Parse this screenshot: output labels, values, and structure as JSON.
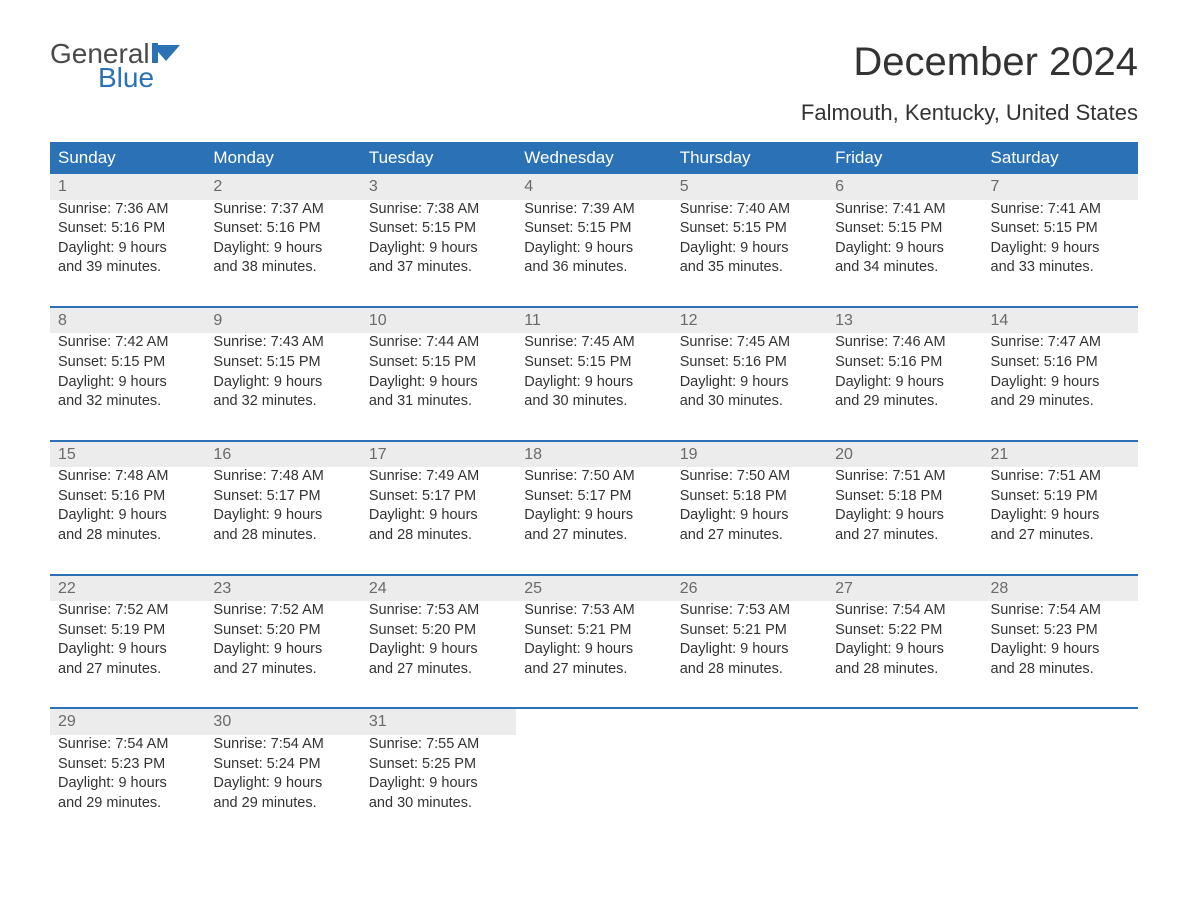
{
  "logo": {
    "text_general": "General",
    "text_blue": "Blue",
    "flag_color": "#2a72b5"
  },
  "title": "December 2024",
  "subtitle": "Falmouth, Kentucky, United States",
  "colors": {
    "header_bg": "#2a72b5",
    "header_text": "#ffffff",
    "daynum_bg": "#ececec",
    "daynum_text": "#6a6a6a",
    "body_text": "#333333",
    "separator": "#2a72b5"
  },
  "day_headers": [
    "Sunday",
    "Monday",
    "Tuesday",
    "Wednesday",
    "Thursday",
    "Friday",
    "Saturday"
  ],
  "weeks": [
    [
      {
        "n": "1",
        "sr": "Sunrise: 7:36 AM",
        "ss": "Sunset: 5:16 PM",
        "d1": "Daylight: 9 hours",
        "d2": "and 39 minutes."
      },
      {
        "n": "2",
        "sr": "Sunrise: 7:37 AM",
        "ss": "Sunset: 5:16 PM",
        "d1": "Daylight: 9 hours",
        "d2": "and 38 minutes."
      },
      {
        "n": "3",
        "sr": "Sunrise: 7:38 AM",
        "ss": "Sunset: 5:15 PM",
        "d1": "Daylight: 9 hours",
        "d2": "and 37 minutes."
      },
      {
        "n": "4",
        "sr": "Sunrise: 7:39 AM",
        "ss": "Sunset: 5:15 PM",
        "d1": "Daylight: 9 hours",
        "d2": "and 36 minutes."
      },
      {
        "n": "5",
        "sr": "Sunrise: 7:40 AM",
        "ss": "Sunset: 5:15 PM",
        "d1": "Daylight: 9 hours",
        "d2": "and 35 minutes."
      },
      {
        "n": "6",
        "sr": "Sunrise: 7:41 AM",
        "ss": "Sunset: 5:15 PM",
        "d1": "Daylight: 9 hours",
        "d2": "and 34 minutes."
      },
      {
        "n": "7",
        "sr": "Sunrise: 7:41 AM",
        "ss": "Sunset: 5:15 PM",
        "d1": "Daylight: 9 hours",
        "d2": "and 33 minutes."
      }
    ],
    [
      {
        "n": "8",
        "sr": "Sunrise: 7:42 AM",
        "ss": "Sunset: 5:15 PM",
        "d1": "Daylight: 9 hours",
        "d2": "and 32 minutes."
      },
      {
        "n": "9",
        "sr": "Sunrise: 7:43 AM",
        "ss": "Sunset: 5:15 PM",
        "d1": "Daylight: 9 hours",
        "d2": "and 32 minutes."
      },
      {
        "n": "10",
        "sr": "Sunrise: 7:44 AM",
        "ss": "Sunset: 5:15 PM",
        "d1": "Daylight: 9 hours",
        "d2": "and 31 minutes."
      },
      {
        "n": "11",
        "sr": "Sunrise: 7:45 AM",
        "ss": "Sunset: 5:15 PM",
        "d1": "Daylight: 9 hours",
        "d2": "and 30 minutes."
      },
      {
        "n": "12",
        "sr": "Sunrise: 7:45 AM",
        "ss": "Sunset: 5:16 PM",
        "d1": "Daylight: 9 hours",
        "d2": "and 30 minutes."
      },
      {
        "n": "13",
        "sr": "Sunrise: 7:46 AM",
        "ss": "Sunset: 5:16 PM",
        "d1": "Daylight: 9 hours",
        "d2": "and 29 minutes."
      },
      {
        "n": "14",
        "sr": "Sunrise: 7:47 AM",
        "ss": "Sunset: 5:16 PM",
        "d1": "Daylight: 9 hours",
        "d2": "and 29 minutes."
      }
    ],
    [
      {
        "n": "15",
        "sr": "Sunrise: 7:48 AM",
        "ss": "Sunset: 5:16 PM",
        "d1": "Daylight: 9 hours",
        "d2": "and 28 minutes."
      },
      {
        "n": "16",
        "sr": "Sunrise: 7:48 AM",
        "ss": "Sunset: 5:17 PM",
        "d1": "Daylight: 9 hours",
        "d2": "and 28 minutes."
      },
      {
        "n": "17",
        "sr": "Sunrise: 7:49 AM",
        "ss": "Sunset: 5:17 PM",
        "d1": "Daylight: 9 hours",
        "d2": "and 28 minutes."
      },
      {
        "n": "18",
        "sr": "Sunrise: 7:50 AM",
        "ss": "Sunset: 5:17 PM",
        "d1": "Daylight: 9 hours",
        "d2": "and 27 minutes."
      },
      {
        "n": "19",
        "sr": "Sunrise: 7:50 AM",
        "ss": "Sunset: 5:18 PM",
        "d1": "Daylight: 9 hours",
        "d2": "and 27 minutes."
      },
      {
        "n": "20",
        "sr": "Sunrise: 7:51 AM",
        "ss": "Sunset: 5:18 PM",
        "d1": "Daylight: 9 hours",
        "d2": "and 27 minutes."
      },
      {
        "n": "21",
        "sr": "Sunrise: 7:51 AM",
        "ss": "Sunset: 5:19 PM",
        "d1": "Daylight: 9 hours",
        "d2": "and 27 minutes."
      }
    ],
    [
      {
        "n": "22",
        "sr": "Sunrise: 7:52 AM",
        "ss": "Sunset: 5:19 PM",
        "d1": "Daylight: 9 hours",
        "d2": "and 27 minutes."
      },
      {
        "n": "23",
        "sr": "Sunrise: 7:52 AM",
        "ss": "Sunset: 5:20 PM",
        "d1": "Daylight: 9 hours",
        "d2": "and 27 minutes."
      },
      {
        "n": "24",
        "sr": "Sunrise: 7:53 AM",
        "ss": "Sunset: 5:20 PM",
        "d1": "Daylight: 9 hours",
        "d2": "and 27 minutes."
      },
      {
        "n": "25",
        "sr": "Sunrise: 7:53 AM",
        "ss": "Sunset: 5:21 PM",
        "d1": "Daylight: 9 hours",
        "d2": "and 27 minutes."
      },
      {
        "n": "26",
        "sr": "Sunrise: 7:53 AM",
        "ss": "Sunset: 5:21 PM",
        "d1": "Daylight: 9 hours",
        "d2": "and 28 minutes."
      },
      {
        "n": "27",
        "sr": "Sunrise: 7:54 AM",
        "ss": "Sunset: 5:22 PM",
        "d1": "Daylight: 9 hours",
        "d2": "and 28 minutes."
      },
      {
        "n": "28",
        "sr": "Sunrise: 7:54 AM",
        "ss": "Sunset: 5:23 PM",
        "d1": "Daylight: 9 hours",
        "d2": "and 28 minutes."
      }
    ],
    [
      {
        "n": "29",
        "sr": "Sunrise: 7:54 AM",
        "ss": "Sunset: 5:23 PM",
        "d1": "Daylight: 9 hours",
        "d2": "and 29 minutes."
      },
      {
        "n": "30",
        "sr": "Sunrise: 7:54 AM",
        "ss": "Sunset: 5:24 PM",
        "d1": "Daylight: 9 hours",
        "d2": "and 29 minutes."
      },
      {
        "n": "31",
        "sr": "Sunrise: 7:55 AM",
        "ss": "Sunset: 5:25 PM",
        "d1": "Daylight: 9 hours",
        "d2": "and 30 minutes."
      },
      null,
      null,
      null,
      null
    ]
  ]
}
